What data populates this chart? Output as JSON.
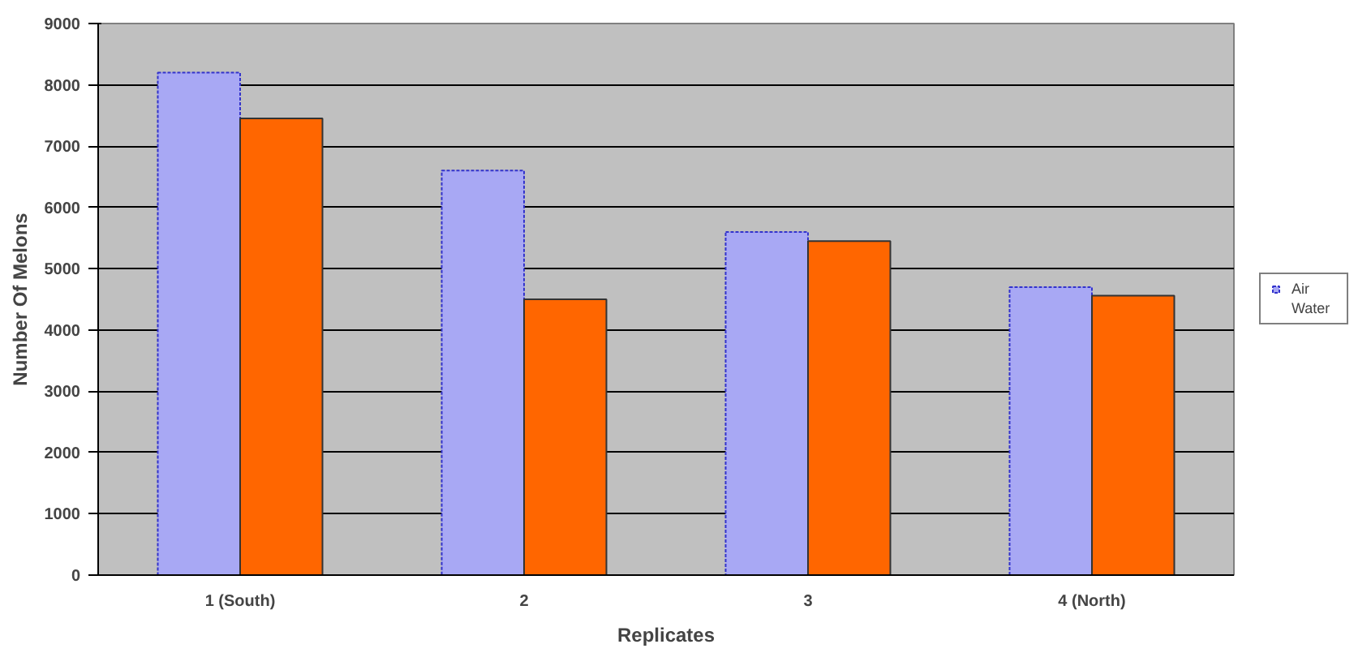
{
  "chart_data": {
    "type": "bar",
    "xlabel": "Replicates",
    "ylabel": "Number Of Melons",
    "categories": [
      "1 (South)",
      "2",
      "3",
      "4 (North)"
    ],
    "series": [
      {
        "name": "Air",
        "color": "#a8a8f4",
        "values": [
          8200,
          6600,
          5600,
          4700
        ]
      },
      {
        "name": "Water",
        "color": "#ff6600",
        "values": [
          7450,
          4500,
          5450,
          4560
        ]
      }
    ],
    "ylim": [
      0,
      9000
    ],
    "yticks": [
      0,
      1000,
      2000,
      3000,
      4000,
      5000,
      6000,
      7000,
      8000,
      9000
    ],
    "grid": "y",
    "legend": "right"
  }
}
